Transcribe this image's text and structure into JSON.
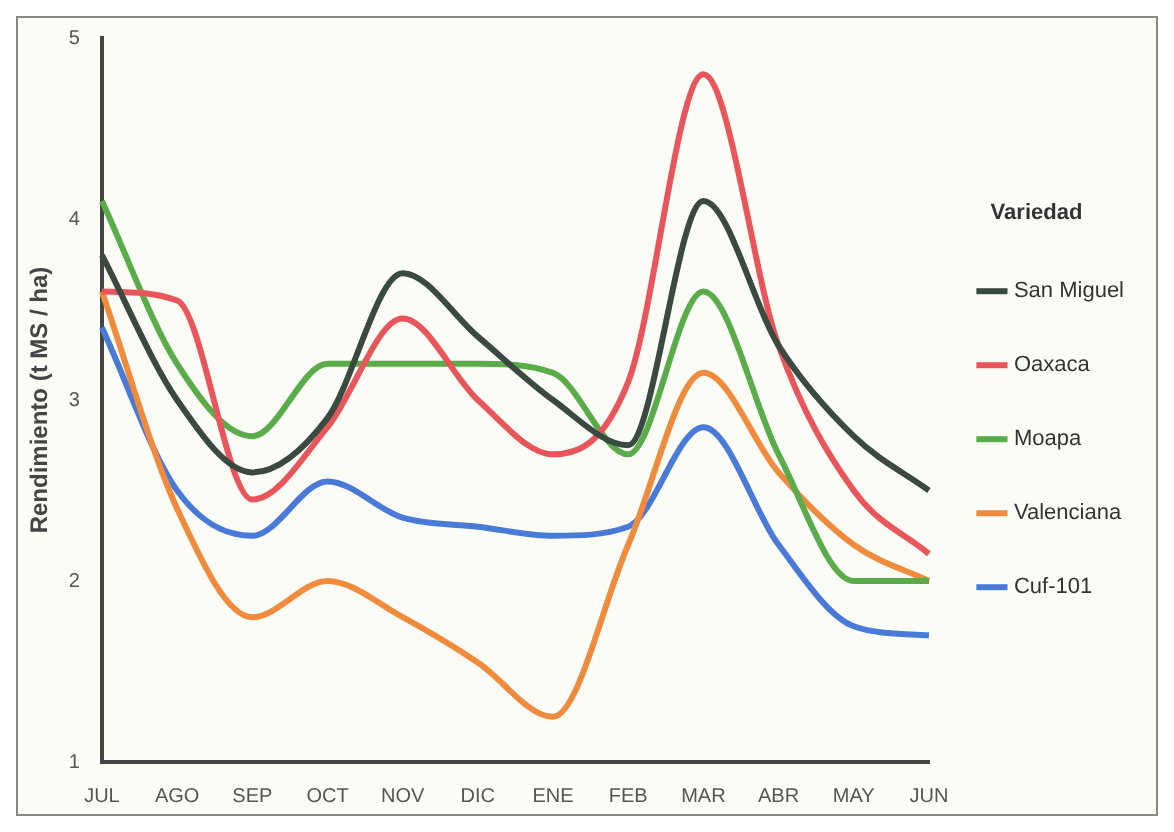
{
  "chart_data": {
    "type": "line",
    "ylabel": "Rendimiento (t MS / ha)",
    "legend_title": "Variedad",
    "legend": "right",
    "grid": false,
    "marker": "none",
    "line_style": "solid",
    "categories": [
      "JUL",
      "AGO",
      "SEP",
      "OCT",
      "NOV",
      "DIC",
      "ENE",
      "FEB",
      "MAR",
      "ABR",
      "MAY",
      "JUN"
    ],
    "ylim": [
      1,
      5
    ],
    "yticks": [
      1,
      2,
      3,
      4,
      5
    ],
    "series": [
      {
        "name": "San Miguel",
        "color": "#3a4a40",
        "values": [
          3.8,
          3.0,
          2.6,
          2.9,
          3.7,
          3.35,
          3.0,
          2.75,
          4.1,
          3.3,
          2.8,
          2.5
        ]
      },
      {
        "name": "Oaxaca",
        "color": "#e8555a",
        "values": [
          3.6,
          3.55,
          2.45,
          2.85,
          3.45,
          3.0,
          2.7,
          3.1,
          4.8,
          3.3,
          2.5,
          2.15
        ]
      },
      {
        "name": "Moapa",
        "color": "#5aac4a",
        "values": [
          4.1,
          3.2,
          2.8,
          3.2,
          3.2,
          3.2,
          3.15,
          2.7,
          3.6,
          2.7,
          2.0,
          2.0
        ]
      },
      {
        "name": "Valenciana",
        "color": "#f08a3c",
        "values": [
          3.6,
          2.4,
          1.8,
          2.0,
          1.8,
          1.55,
          1.25,
          2.2,
          3.15,
          2.6,
          2.2,
          2.0
        ]
      },
      {
        "name": "Cuf-101",
        "color": "#4a7ad8",
        "values": [
          3.4,
          2.5,
          2.25,
          2.55,
          2.35,
          2.3,
          2.25,
          2.3,
          2.85,
          2.2,
          1.75,
          1.7
        ]
      }
    ]
  }
}
